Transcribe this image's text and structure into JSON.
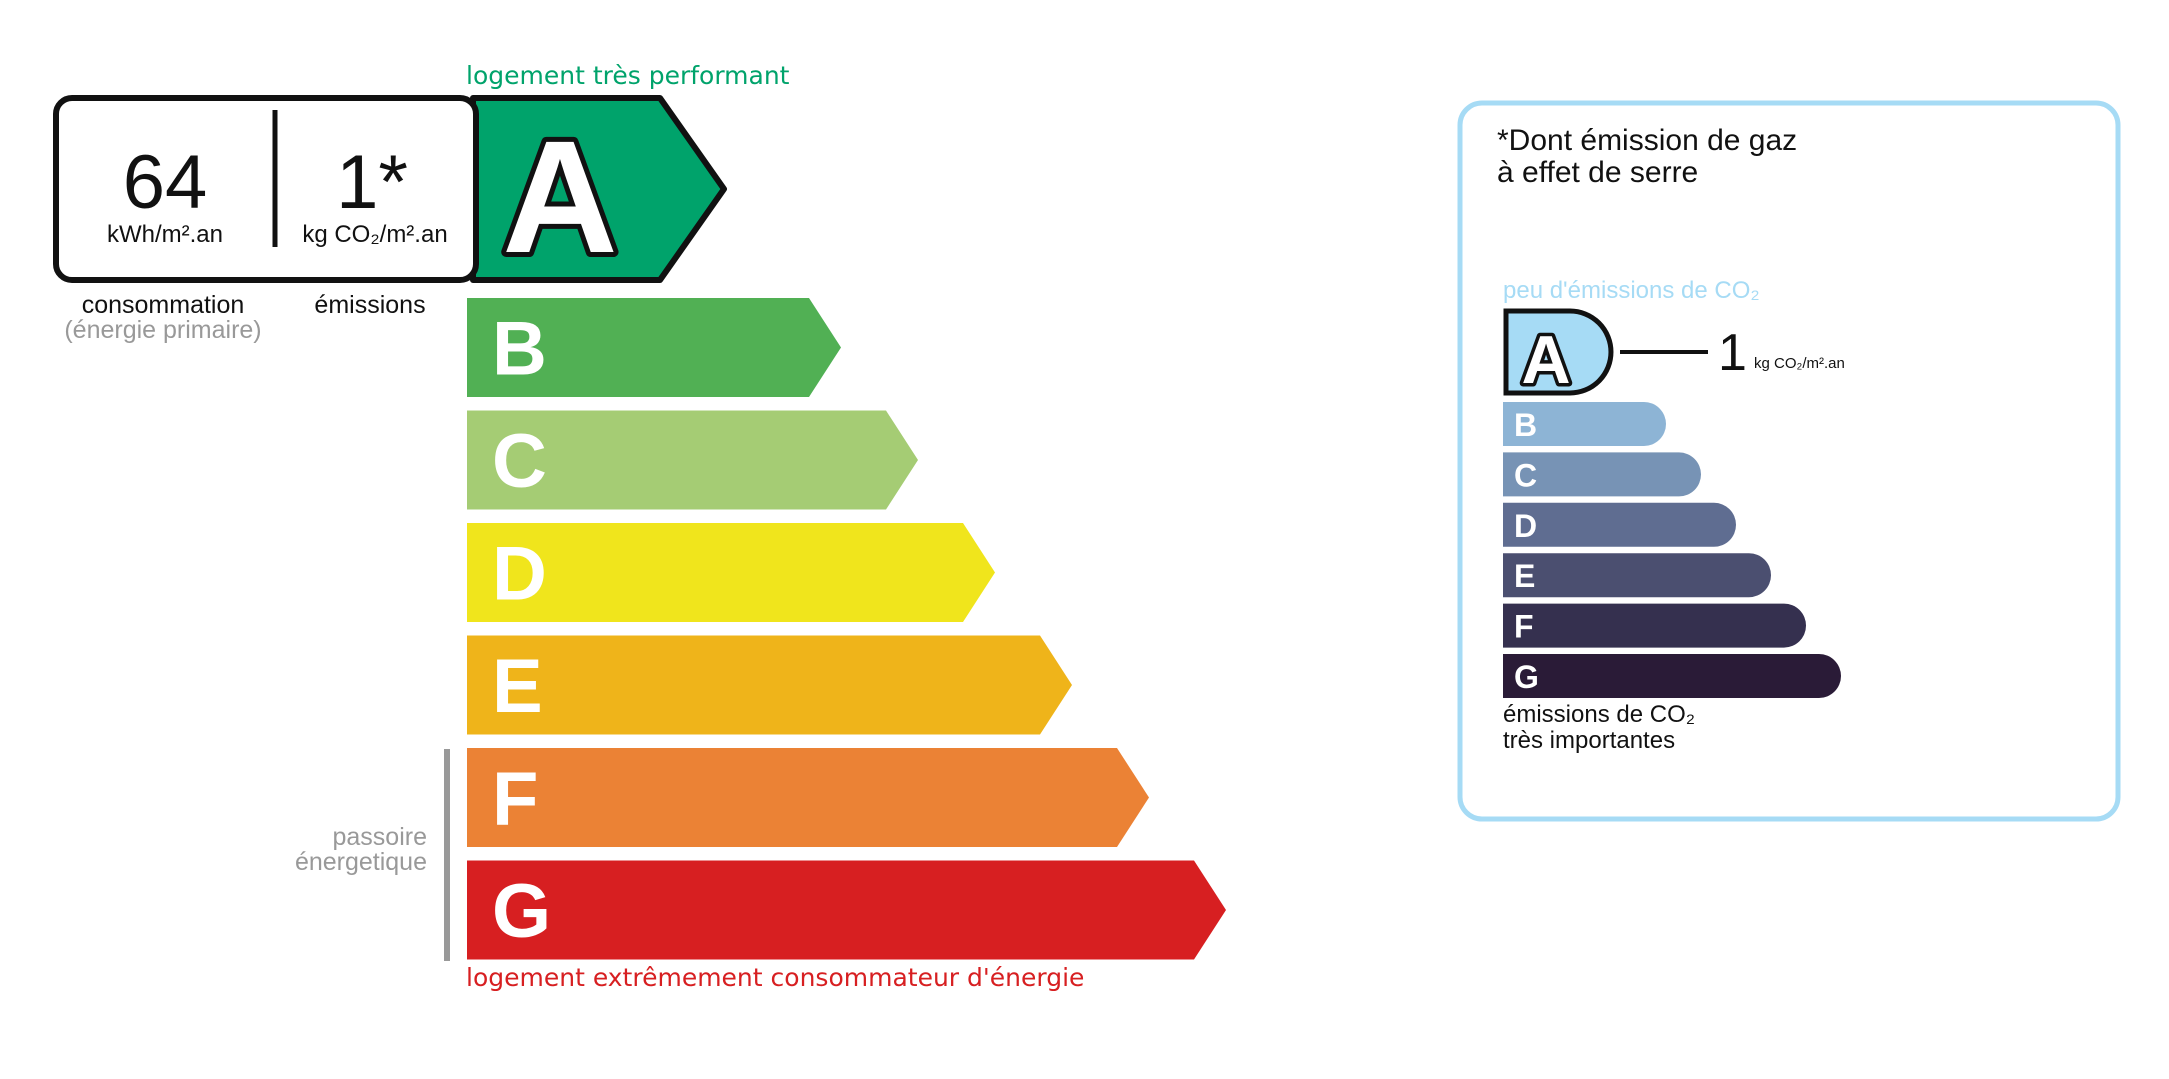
{
  "dpe": {
    "top_label": "logement très performant",
    "bottom_label": "logement extrêmement consommateur d'énergie",
    "consumption_value": "64",
    "consumption_unit": "kWh/m².an",
    "emission_value": "1*",
    "emission_unit": "kg CO₂/m².an",
    "consumption_label": "consommation",
    "consumption_sublabel": "(énergie primaire)",
    "emission_label": "émissions",
    "passoire_line1": "passoire",
    "passoire_line2": "énergetique",
    "current_class": "A",
    "classes": [
      {
        "letter": "A",
        "color": "#00a36b"
      },
      {
        "letter": "B",
        "color": "#51b054"
      },
      {
        "letter": "C",
        "color": "#a5cc74"
      },
      {
        "letter": "D",
        "color": "#f0e51c"
      },
      {
        "letter": "E",
        "color": "#efb41a"
      },
      {
        "letter": "F",
        "color": "#eb8235"
      },
      {
        "letter": "G",
        "color": "#d71f21"
      }
    ]
  },
  "ges": {
    "title_line1": "*Dont émission de gaz",
    "title_line2": "à effet de serre",
    "top_label": "peu d'émissions de CO₂",
    "bottom_line1": "émissions de CO₂",
    "bottom_line2": "très importantes",
    "value": "1",
    "unit": "kg CO₂/m².an",
    "current_class": "A",
    "border_color": "#a6dbf5",
    "classes": [
      {
        "letter": "A",
        "color": "#a6dbf5"
      },
      {
        "letter": "B",
        "color": "#8db4d5"
      },
      {
        "letter": "C",
        "color": "#7793b5"
      },
      {
        "letter": "D",
        "color": "#5f6d91"
      },
      {
        "letter": "E",
        "color": "#4b4f70"
      },
      {
        "letter": "F",
        "color": "#35304f"
      },
      {
        "letter": "G",
        "color": "#2a1b37"
      }
    ]
  }
}
